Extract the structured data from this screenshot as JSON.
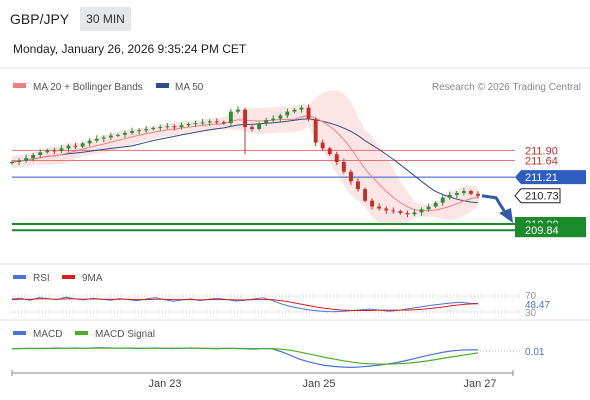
{
  "header": {
    "pair": "GBP/JPY",
    "timeframe": "30 MIN",
    "datetime": "Monday, January 26, 2026 9:35:24 PM CET"
  },
  "colors": {
    "ma20": "#f08080",
    "ma50": "#2e4d8a",
    "band_fill": "#fde2e2",
    "resistance": "#e87474",
    "pivot": "#2e5cbf",
    "support": "#1a8a2a",
    "candle_up": "#2e8b3a",
    "candle_down": "#c0302a",
    "rsi": "#4a73d6",
    "rsi_ma": "#d62020",
    "macd": "#4a73d6",
    "macd_signal": "#4caf2a",
    "arrow": "#2e5ca8"
  },
  "chart_data": [
    {
      "type": "candlestick",
      "title": "GBP/JPY 30 MIN",
      "legend": [
        {
          "name": "MA 20 + Bollinger Bands",
          "color": "#f08080"
        },
        {
          "name": "MA 50",
          "color": "#2e4d8a"
        }
      ],
      "legend_position": "top-left",
      "credit": "Research © 2026 Trading Central",
      "x_ticks": [
        "Jan 23",
        "Jan 25",
        "Jan 27"
      ],
      "ylim": [
        209.2,
        213.2
      ],
      "grid": false,
      "price_levels": [
        {
          "label": "211.90",
          "value": 211.9,
          "kind": "resistance"
        },
        {
          "label": "211.64",
          "value": 211.64,
          "kind": "resistance"
        },
        {
          "label": "211.21",
          "value": 211.21,
          "kind": "pivot"
        },
        {
          "label": "210.73",
          "value": 210.73,
          "kind": "last"
        },
        {
          "label": "210.00",
          "value": 210.0,
          "kind": "support"
        },
        {
          "label": "209.84",
          "value": 209.84,
          "kind": "support"
        }
      ],
      "close_series": [
        211.6,
        211.63,
        211.7,
        211.78,
        211.85,
        211.9,
        211.88,
        211.95,
        212.02,
        212.0,
        212.08,
        212.15,
        212.2,
        212.23,
        212.28,
        212.3,
        212.35,
        212.4,
        212.42,
        212.45,
        212.48,
        212.5,
        212.52,
        212.5,
        212.55,
        212.58,
        212.6,
        212.62,
        212.65,
        212.63,
        212.6,
        212.9,
        212.95,
        212.5,
        212.45,
        212.6,
        212.68,
        212.72,
        212.8,
        212.9,
        212.95,
        213.0,
        212.7,
        212.1,
        211.95,
        211.8,
        211.6,
        211.35,
        211.1,
        210.9,
        210.6,
        210.45,
        210.4,
        210.35,
        210.33,
        210.28,
        210.25,
        210.3,
        210.38,
        210.45,
        210.55,
        210.68,
        210.75,
        210.8,
        210.85,
        210.78,
        210.73
      ],
      "forecast": {
        "from": 210.73,
        "to": 210.0
      }
    },
    {
      "type": "line",
      "title": "RSI",
      "legend": [
        {
          "name": "RSI",
          "color": "#4a73d6"
        },
        {
          "name": "9MA",
          "color": "#d62020"
        }
      ],
      "y_ticks": [
        "70",
        "30"
      ],
      "value_label": "48.47",
      "ylim": [
        0,
        100
      ],
      "series": [
        {
          "name": "RSI",
          "values": [
            62,
            64,
            58,
            66,
            63,
            60,
            67,
            62,
            59,
            64,
            61,
            58,
            63,
            60,
            57,
            62,
            66,
            60,
            55,
            59,
            62,
            57,
            61,
            64,
            60,
            56,
            58,
            62,
            65,
            58,
            48,
            40,
            35,
            30,
            27,
            25,
            24,
            26,
            28,
            30,
            32,
            29,
            26,
            28,
            32,
            36,
            40,
            44,
            47,
            50,
            52,
            49,
            48.47
          ]
        },
        {
          "name": "9MA",
          "values": [
            60,
            61,
            61,
            62,
            62,
            61,
            62,
            62,
            61,
            62,
            61,
            61,
            61,
            61,
            60,
            60,
            61,
            61,
            60,
            60,
            60,
            59,
            60,
            60,
            60,
            59,
            59,
            60,
            60,
            60,
            57,
            53,
            48,
            43,
            38,
            34,
            31,
            29,
            28,
            28,
            28,
            29,
            29,
            29,
            29,
            30,
            32,
            35,
            38,
            42,
            45,
            47,
            48
          ]
        }
      ]
    },
    {
      "type": "line",
      "title": "MACD",
      "legend": [
        {
          "name": "MACD",
          "color": "#4a73d6"
        },
        {
          "name": "MACD Signal",
          "color": "#4caf2a"
        }
      ],
      "value_label": "0.01",
      "ylim": [
        -0.8,
        0.3
      ],
      "series": [
        {
          "name": "MACD",
          "values": [
            0.05,
            0.06,
            0.07,
            0.06,
            0.07,
            0.08,
            0.07,
            0.08,
            0.07,
            0.08,
            0.09,
            0.08,
            0.07,
            0.08,
            0.06,
            0.07,
            0.08,
            0.07,
            0.06,
            0.07,
            0.08,
            0.07,
            0.06,
            0.05,
            0.07,
            0.06,
            0.05,
            0.04,
            0.06,
            0.05,
            -0.05,
            -0.18,
            -0.32,
            -0.42,
            -0.5,
            -0.56,
            -0.6,
            -0.62,
            -0.63,
            -0.61,
            -0.58,
            -0.55,
            -0.5,
            -0.45,
            -0.38,
            -0.3,
            -0.22,
            -0.15,
            -0.08,
            -0.03,
            0.0,
            0.01,
            0.01
          ]
        },
        {
          "name": "MACD Signal",
          "values": [
            0.05,
            0.055,
            0.06,
            0.06,
            0.065,
            0.07,
            0.07,
            0.072,
            0.072,
            0.074,
            0.077,
            0.077,
            0.076,
            0.077,
            0.074,
            0.073,
            0.074,
            0.073,
            0.071,
            0.071,
            0.072,
            0.071,
            0.069,
            0.066,
            0.067,
            0.066,
            0.063,
            0.059,
            0.059,
            0.057,
            0.036,
            0.0,
            -0.06,
            -0.13,
            -0.2,
            -0.27,
            -0.33,
            -0.39,
            -0.44,
            -0.48,
            -0.5,
            -0.51,
            -0.51,
            -0.5,
            -0.48,
            -0.45,
            -0.41,
            -0.36,
            -0.3,
            -0.25,
            -0.2,
            -0.15,
            -0.1
          ]
        }
      ]
    }
  ]
}
